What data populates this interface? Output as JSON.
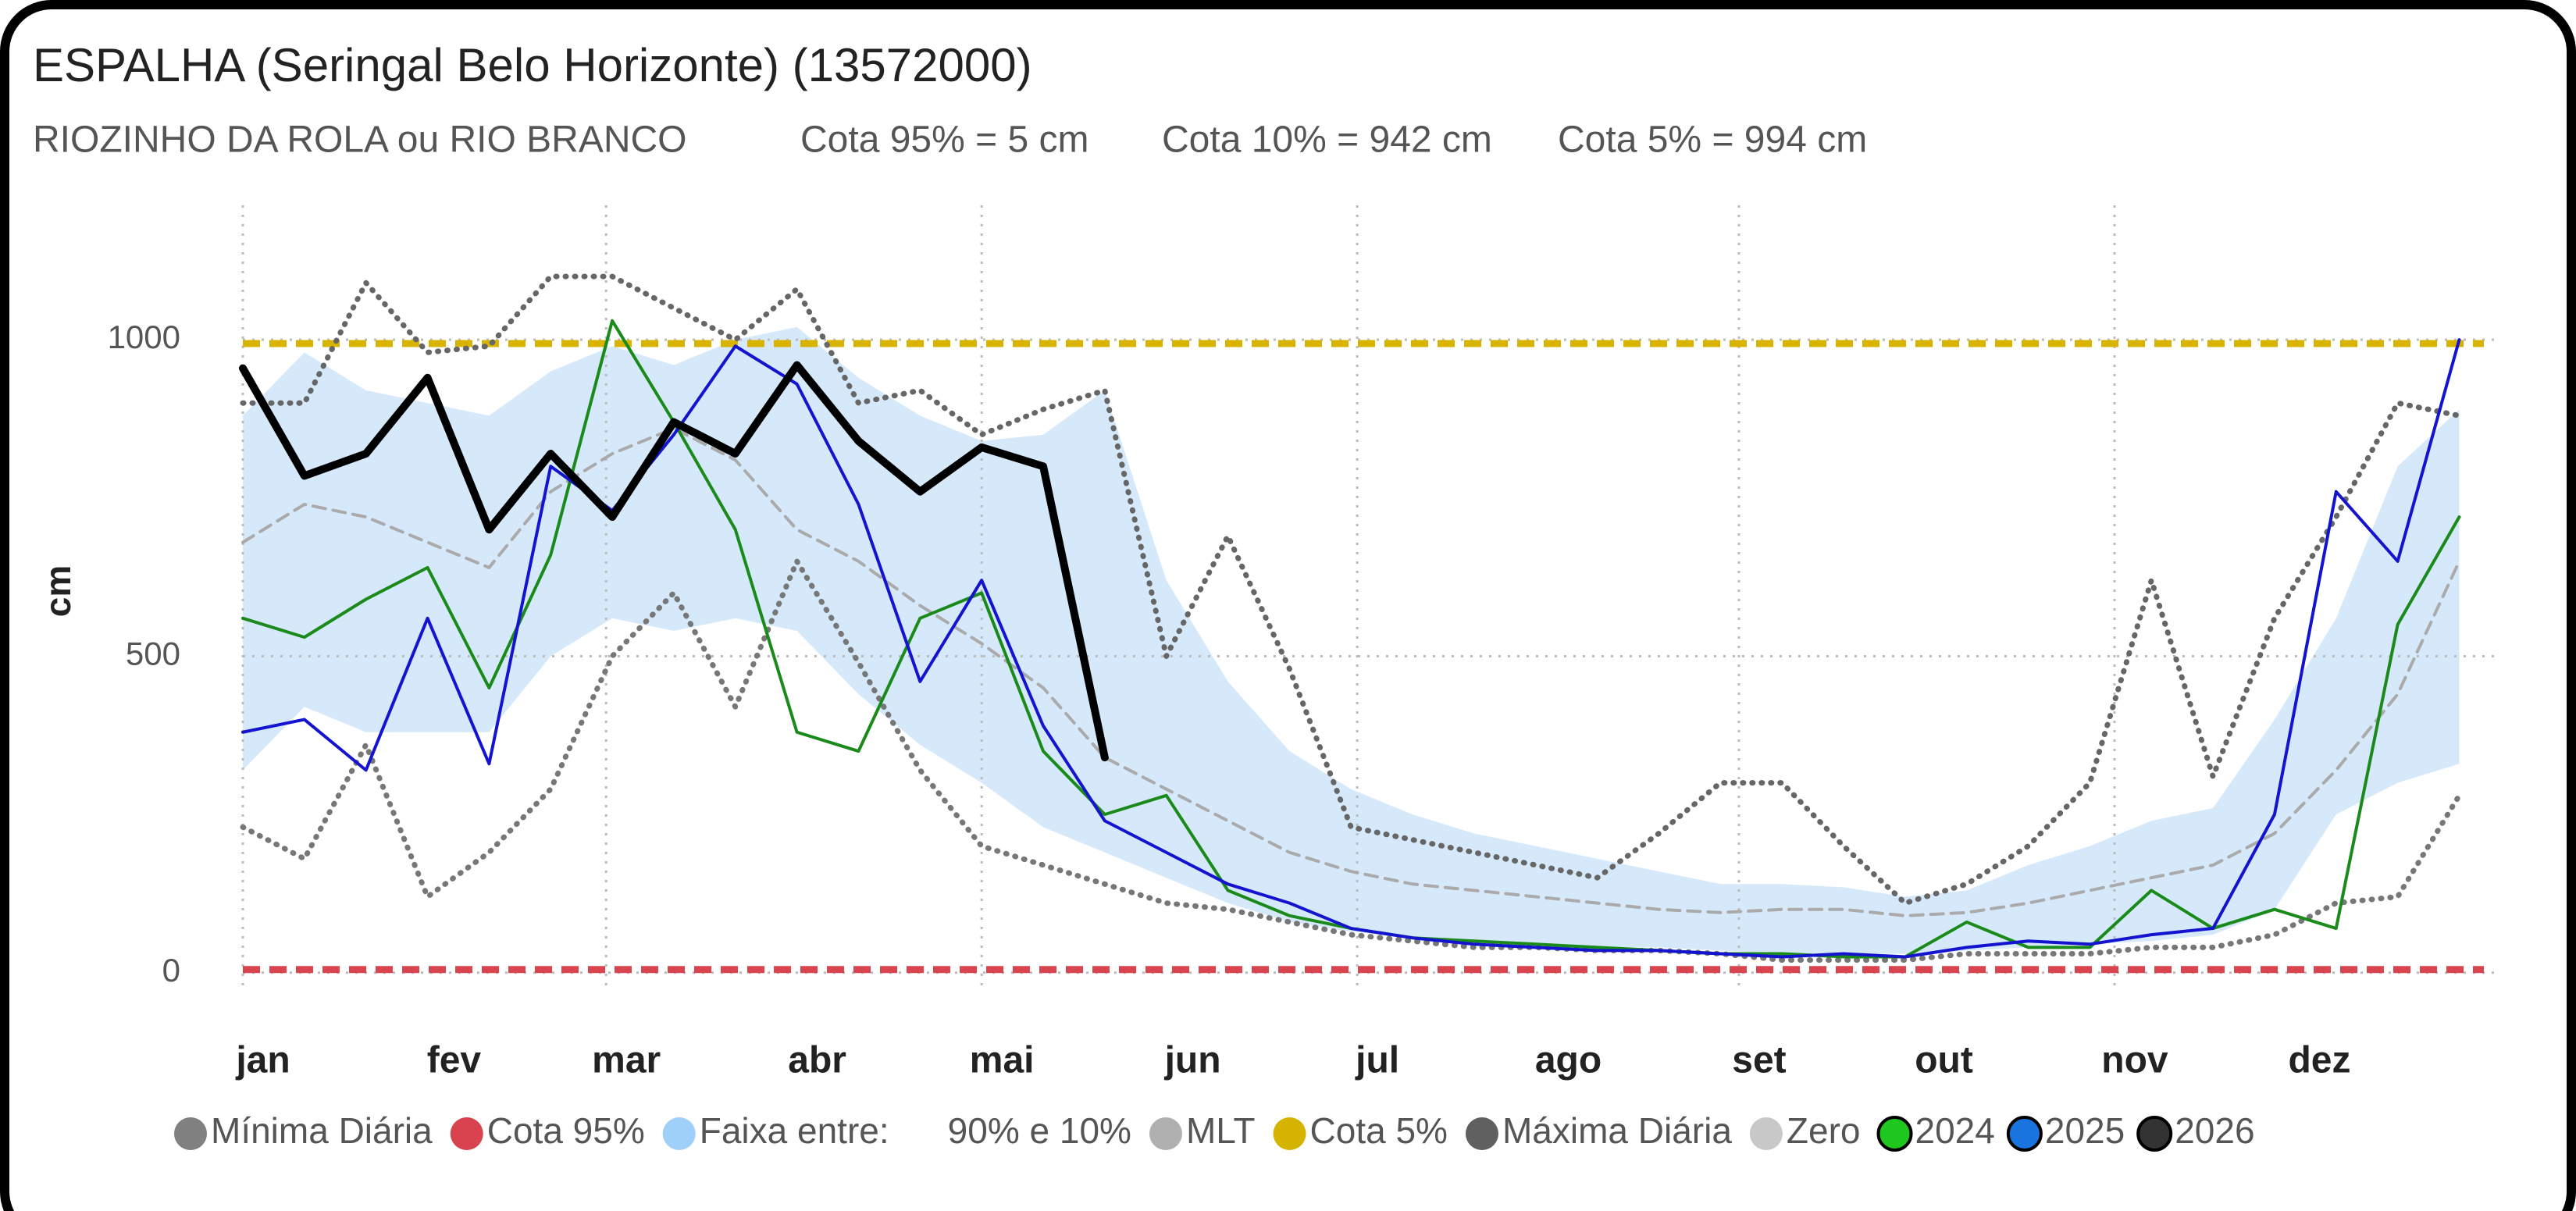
{
  "chart_data": {
    "type": "line",
    "title": "ESPALHA (Seringal Belo Horizonte) (13572000)",
    "subtitle_items": [
      "RIOZINHO DA ROLA ou RIO BRANCO",
      "Cota 95% = 5 cm",
      "Cota 10% = 942 cm",
      "Cota 5% = 994 cm"
    ],
    "y_label": "cm",
    "x": [
      1,
      11,
      21,
      31,
      41,
      51,
      61,
      71,
      81,
      91,
      101,
      111,
      121,
      131,
      141,
      151,
      161,
      171,
      181,
      191,
      201,
      211,
      221,
      231,
      241,
      251,
      261,
      271,
      281,
      291,
      301,
      311,
      321,
      331,
      341,
      351,
      361
    ],
    "xlim": [
      1,
      365
    ],
    "xticks": [
      {
        "value": 1,
        "label": "jan"
      },
      {
        "value": 32,
        "label": "fev"
      },
      {
        "value": 60,
        "label": "mar"
      },
      {
        "value": 91,
        "label": "abr"
      },
      {
        "value": 121,
        "label": "mai"
      },
      {
        "value": 152,
        "label": "jun"
      },
      {
        "value": 182,
        "label": "jul"
      },
      {
        "value": 213,
        "label": "ago"
      },
      {
        "value": 244,
        "label": "set"
      },
      {
        "value": 274,
        "label": "out"
      },
      {
        "value": 305,
        "label": "nov"
      },
      {
        "value": 335,
        "label": "dez"
      }
    ],
    "ylim": [
      -20,
      1200
    ],
    "yticks": [
      0,
      500,
      1000
    ],
    "grid": true,
    "band": {
      "name": "Faixa entre:",
      "range_label": "90% e 10%",
      "color": "#d6e9fb",
      "legend_color": "#9fd0fa",
      "upper": [
        880,
        980,
        920,
        900,
        880,
        950,
        990,
        960,
        1000,
        1020,
        940,
        880,
        840,
        850,
        920,
        620,
        460,
        350,
        290,
        250,
        220,
        200,
        180,
        160,
        140,
        140,
        135,
        120,
        130,
        170,
        200,
        240,
        260,
        400,
        560,
        800,
        890
      ],
      "lower": [
        320,
        420,
        380,
        380,
        380,
        500,
        560,
        540,
        560,
        540,
        440,
        360,
        300,
        230,
        190,
        150,
        110,
        80,
        65,
        55,
        50,
        45,
        40,
        40,
        35,
        30,
        30,
        30,
        35,
        40,
        45,
        50,
        60,
        100,
        250,
        300,
        330
      ]
    },
    "reference_lines": [
      {
        "name": "Cota 95%",
        "value": 5,
        "color": "#d9454f",
        "legend_color": "#d9434f"
      },
      {
        "name": "Cota 5%",
        "value": 994,
        "color": "#d8b400",
        "legend_color": "#d4b400"
      }
    ],
    "legend_only": [
      {
        "name": "Zero",
        "legend_color": "#c8c8c8"
      }
    ],
    "series": [
      {
        "name": "Mínima Diária",
        "color": "#777777",
        "legend_color": "#808080",
        "style": "dotted",
        "width": 7,
        "values": [
          230,
          180,
          360,
          120,
          190,
          290,
          500,
          600,
          420,
          650,
          490,
          320,
          200,
          170,
          140,
          110,
          100,
          80,
          60,
          50,
          40,
          40,
          35,
          35,
          30,
          20,
          20,
          20,
          30,
          30,
          30,
          40,
          40,
          60,
          110,
          120,
          280
        ]
      },
      {
        "name": "MLT",
        "color": "#aaaaaa",
        "legend_color": "#b0b0b0",
        "style": "dashed",
        "width": 4,
        "values": [
          680,
          740,
          720,
          680,
          640,
          760,
          820,
          860,
          810,
          700,
          650,
          580,
          520,
          450,
          340,
          290,
          240,
          190,
          160,
          140,
          130,
          120,
          110,
          100,
          95,
          100,
          100,
          90,
          95,
          110,
          130,
          150,
          170,
          220,
          320,
          440,
          650
        ]
      },
      {
        "name": "Máxima Diária",
        "color": "#666666",
        "legend_color": "#606060",
        "style": "dotted",
        "width": 7,
        "values": [
          900,
          900,
          1090,
          980,
          990,
          1100,
          1100,
          1050,
          1000,
          1080,
          900,
          920,
          850,
          890,
          920,
          500,
          690,
          480,
          230,
          210,
          190,
          170,
          150,
          220,
          300,
          300,
          200,
          110,
          140,
          200,
          300,
          620,
          310,
          560,
          720,
          900,
          880
        ]
      },
      {
        "name": "2024",
        "color": "#1a8a1a",
        "legend_color": "#1ec81e",
        "style": "solid",
        "width": 4,
        "values": [
          560,
          530,
          590,
          640,
          450,
          660,
          1030,
          870,
          700,
          380,
          350,
          560,
          600,
          350,
          250,
          280,
          130,
          90,
          70,
          55,
          50,
          45,
          40,
          35,
          30,
          30,
          25,
          25,
          80,
          40,
          40,
          130,
          70,
          100,
          70,
          550,
          720
        ]
      },
      {
        "name": "2025",
        "color": "#1414d0",
        "legend_color": "#1a74e0",
        "style": "solid",
        "width": 4,
        "values": [
          380,
          400,
          320,
          560,
          330,
          800,
          730,
          850,
          990,
          930,
          740,
          460,
          620,
          390,
          240,
          190,
          140,
          110,
          70,
          55,
          45,
          40,
          35,
          35,
          30,
          25,
          30,
          25,
          40,
          50,
          45,
          60,
          70,
          250,
          760,
          650,
          1000
        ]
      },
      {
        "name": "2026",
        "color": "#000000",
        "legend_color": "#333333",
        "style": "solid",
        "width": 10,
        "values": [
          955,
          785,
          820,
          940,
          700,
          820,
          720,
          870,
          820,
          960,
          840,
          760,
          830,
          800,
          340,
          null,
          null,
          null,
          null,
          null,
          null,
          null,
          null,
          null,
          null,
          null,
          null,
          null,
          null,
          null,
          null,
          null,
          null,
          null,
          null,
          null,
          null
        ]
      }
    ]
  }
}
